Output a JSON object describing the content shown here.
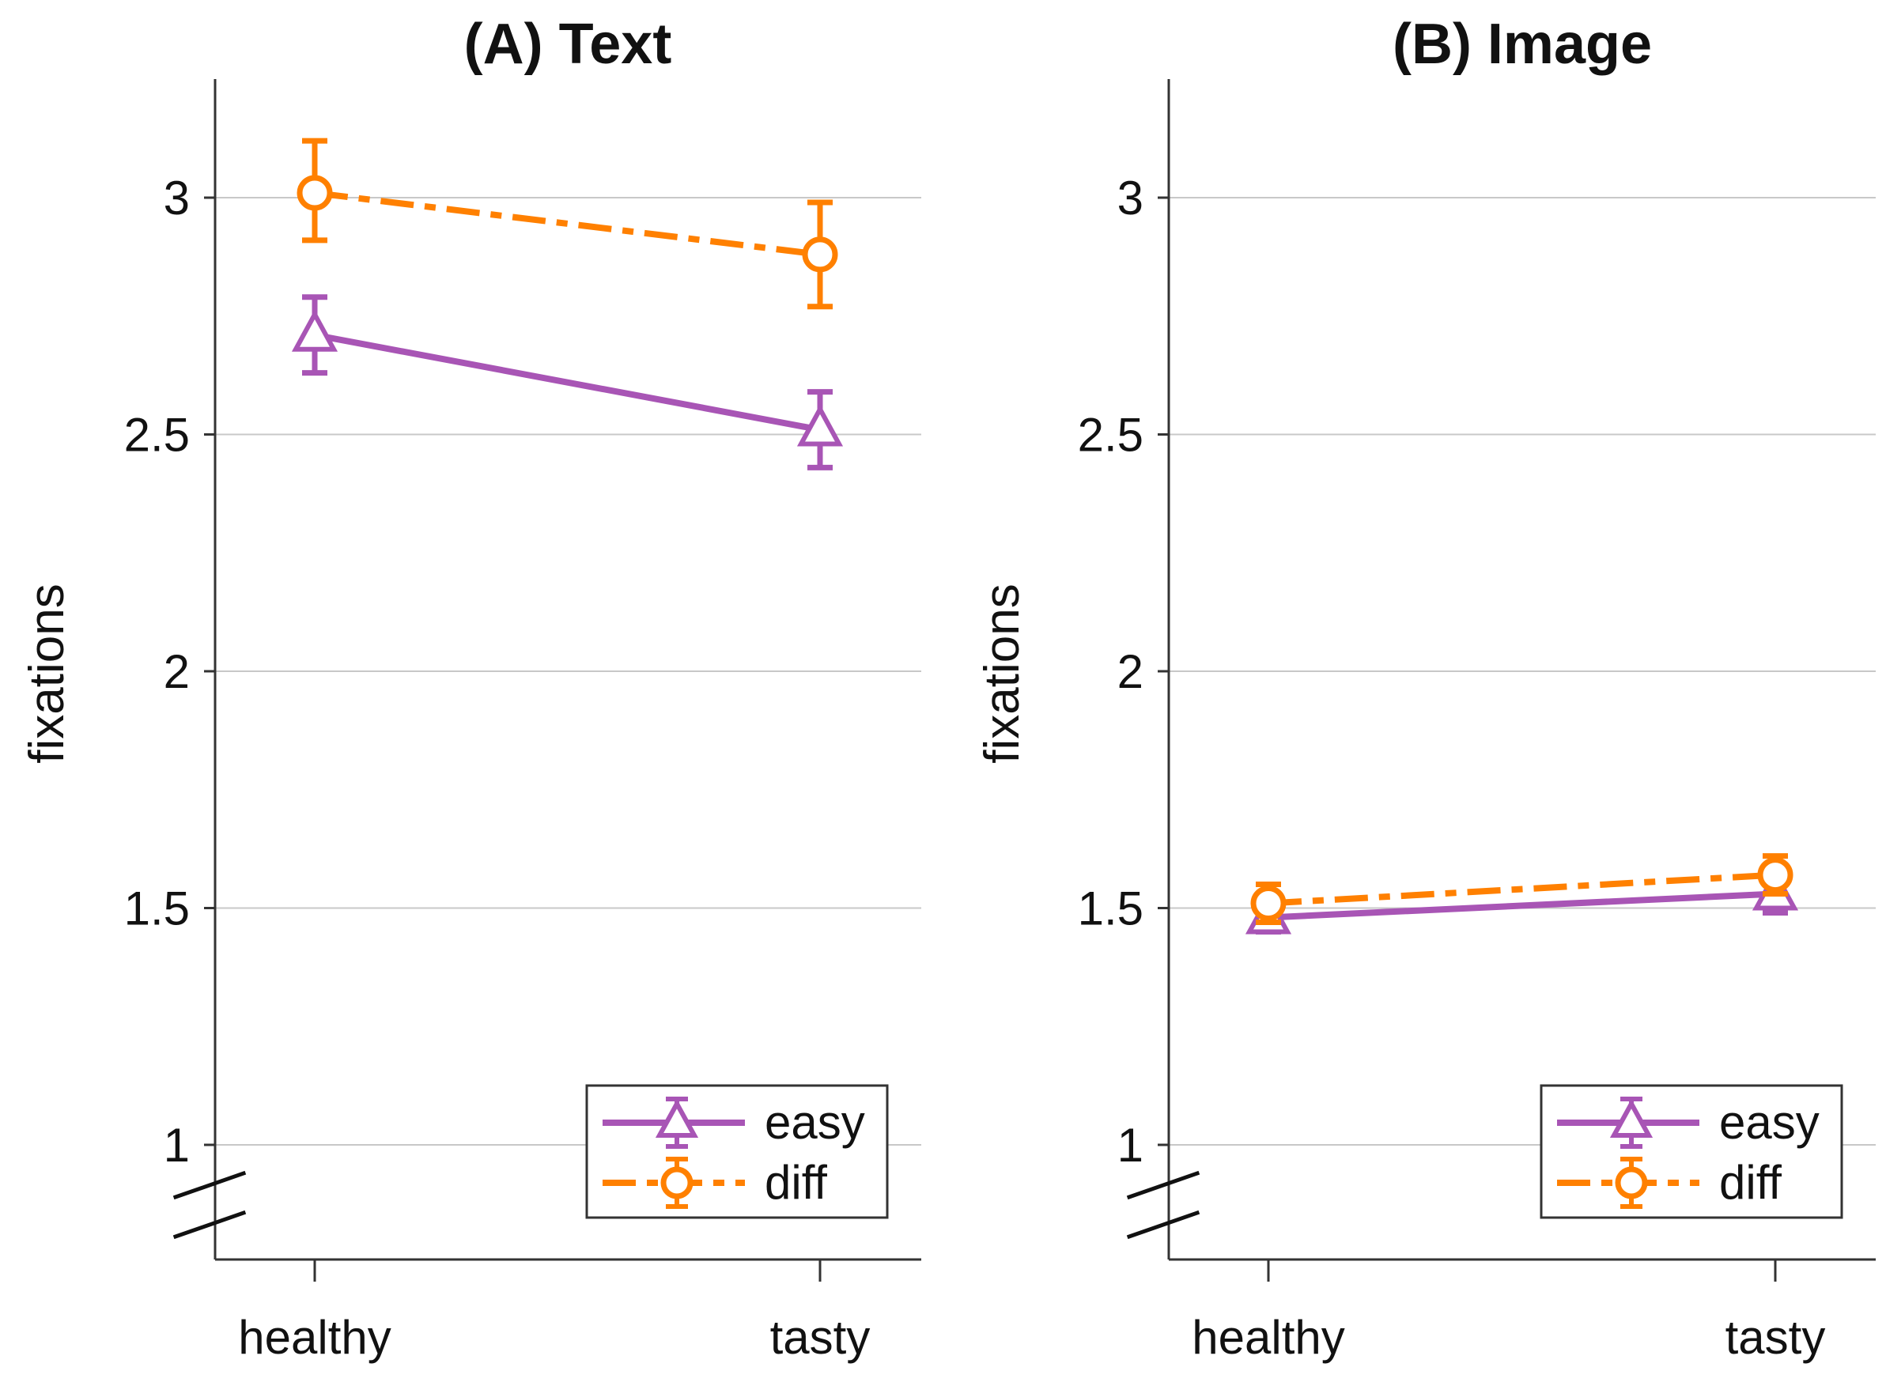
{
  "chart_data": [
    {
      "type": "line",
      "title": "(A) Text",
      "xlabel": "",
      "ylabel": "fixations",
      "categories": [
        "healthy",
        "tasty"
      ],
      "yticks": [
        "1",
        "1.5",
        "2",
        "2.5",
        "3"
      ],
      "ylim": [
        0.75,
        3.25
      ],
      "axis_break": true,
      "legend_position": "bottom-right",
      "series": [
        {
          "name": "easy",
          "color": "#a855b5",
          "marker": "triangle",
          "linestyle": "solid",
          "values": [
            2.71,
            2.51
          ],
          "err_low": [
            2.63,
            2.43
          ],
          "err_high": [
            2.79,
            2.59
          ]
        },
        {
          "name": "diff",
          "color": "#ff8000",
          "marker": "circle",
          "linestyle": "dashdot",
          "values": [
            3.01,
            2.88
          ],
          "err_low": [
            2.91,
            2.77
          ],
          "err_high": [
            3.12,
            2.99
          ]
        }
      ]
    },
    {
      "type": "line",
      "title": "(B) Image",
      "xlabel": "",
      "ylabel": "fixations",
      "categories": [
        "healthy",
        "tasty"
      ],
      "yticks": [
        "1",
        "1.5",
        "2",
        "2.5",
        "3"
      ],
      "ylim": [
        0.75,
        3.25
      ],
      "axis_break": true,
      "legend_position": "bottom-right",
      "series": [
        {
          "name": "easy",
          "color": "#a855b5",
          "marker": "triangle",
          "linestyle": "solid",
          "values": [
            1.48,
            1.53
          ],
          "err_low": [
            1.45,
            1.49
          ],
          "err_high": [
            1.51,
            1.57
          ]
        },
        {
          "name": "diff",
          "color": "#ff8000",
          "marker": "circle",
          "linestyle": "dashdot",
          "values": [
            1.51,
            1.57
          ],
          "err_low": [
            1.47,
            1.53
          ],
          "err_high": [
            1.55,
            1.61
          ]
        }
      ]
    }
  ]
}
